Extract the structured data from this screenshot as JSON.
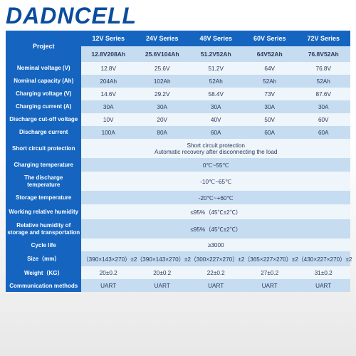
{
  "brand": "DADNCELL",
  "table": {
    "project_label": "Project",
    "series": [
      "12V Series",
      "24V Series",
      "48V Series",
      "60V Series",
      "72V Series"
    ],
    "models": [
      "12.8V208Ah",
      "25.6V104Ah",
      "51.2V52Ah",
      "64V52Ah",
      "76.8V52Ah"
    ],
    "rows": [
      {
        "label": "Nominal voltage (V)",
        "cells": [
          "12.8V",
          "25.6V",
          "51.2V",
          "64V",
          "76.8V"
        ],
        "shade": "a"
      },
      {
        "label": "Nominal capacity (Ah)",
        "cells": [
          "204Ah",
          "102Ah",
          "52Ah",
          "52Ah",
          "52Ah"
        ],
        "shade": "b"
      },
      {
        "label": "Charging voltage (V)",
        "cells": [
          "14.6V",
          "29.2V",
          "58.4V",
          "73V",
          "87.6V"
        ],
        "shade": "a"
      },
      {
        "label": "Charging current (A)",
        "cells": [
          "30A",
          "30A",
          "30A",
          "30A",
          "30A"
        ],
        "shade": "b"
      },
      {
        "label": "Discharge cut-off voltage",
        "cells": [
          "10V",
          "20V",
          "40V",
          "50V",
          "60V"
        ],
        "shade": "a"
      },
      {
        "label": "Discharge current",
        "cells": [
          "100A",
          "80A",
          "60A",
          "60A",
          "60A"
        ],
        "shade": "b"
      },
      {
        "label": "Short circuit protection",
        "span": "Short circuit protection\nAutomatic recovery after disconnecting the load",
        "shade": "a"
      },
      {
        "label": "Charging temperature",
        "span": "0℃~55℃",
        "shade": "b"
      },
      {
        "label": "The discharge temperature",
        "span": "-10℃~65℃",
        "shade": "a"
      },
      {
        "label": "Storage temperature",
        "span": "-20℃~+60℃",
        "shade": "b"
      },
      {
        "label": "Working relative humidity",
        "span": "≤95%（45℃±2℃）",
        "shade": "a"
      },
      {
        "label": "Relative humidity of storage and transportation",
        "span": "≤95%（45℃±2℃）",
        "shade": "b"
      },
      {
        "label": "Cycle life",
        "span": "≥3000",
        "shade": "a"
      },
      {
        "label": "Size（mm）",
        "cells": [
          "（390×143×270）±2",
          "（390×143×270）±2",
          "（300×227×270）±2",
          "（365×227×270）±2",
          "（430×227×270）±2"
        ],
        "shade": "b"
      },
      {
        "label": "Weight（KG）",
        "cells": [
          "20±0.2",
          "20±0.2",
          "22±0.2",
          "27±0.2",
          "31±0.2"
        ],
        "shade": "a"
      },
      {
        "label": "Communication methods",
        "cells": [
          "UART",
          "UART",
          "UART",
          "UART",
          "UART"
        ],
        "shade": "b"
      }
    ]
  },
  "colors": {
    "header_bg": "#1565c0",
    "header_fg": "#ffffff",
    "band_light": "#eef5fb",
    "band_dark": "#c6dcf0",
    "text": "#2a3a5a",
    "logo": "#0a4d9e"
  }
}
